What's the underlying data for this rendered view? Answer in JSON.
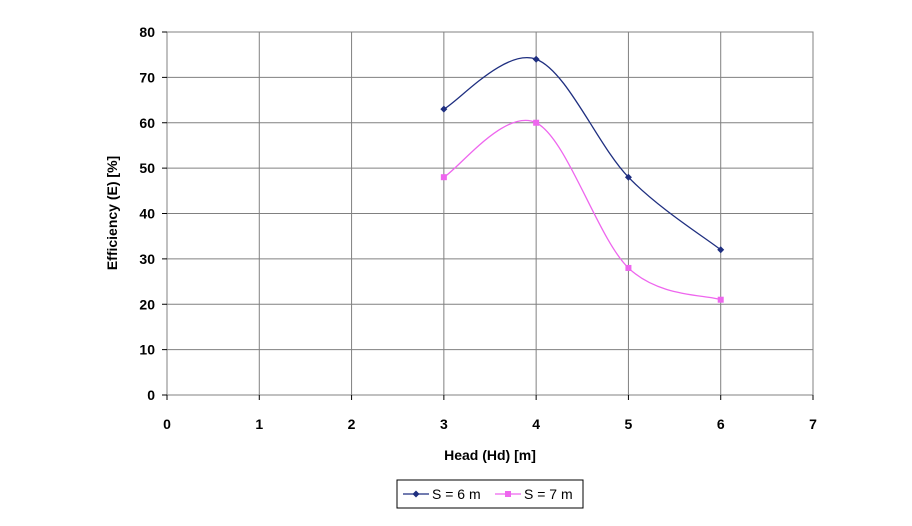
{
  "chart_data": {
    "type": "line",
    "xlabel": "Head (Hd) [m]",
    "ylabel": "Efficiency (E) [%]",
    "xlim": [
      0,
      7
    ],
    "ylim": [
      0,
      80
    ],
    "x_ticks": [
      0,
      1,
      2,
      3,
      4,
      5,
      6,
      7
    ],
    "y_ticks": [
      0,
      10,
      20,
      30,
      40,
      50,
      60,
      70,
      80
    ],
    "grid": true,
    "smooth": true,
    "legend_position": "bottom-center",
    "series": [
      {
        "name": "S = 6 m",
        "color": "#1f2f80",
        "marker": "diamond",
        "x": [
          3,
          4,
          5,
          6
        ],
        "values": [
          63,
          74,
          48,
          32
        ]
      },
      {
        "name": "S = 7 m",
        "color": "#ee66ee",
        "marker": "square",
        "x": [
          3,
          4,
          5,
          6
        ],
        "values": [
          48,
          60,
          28,
          21
        ]
      }
    ]
  }
}
